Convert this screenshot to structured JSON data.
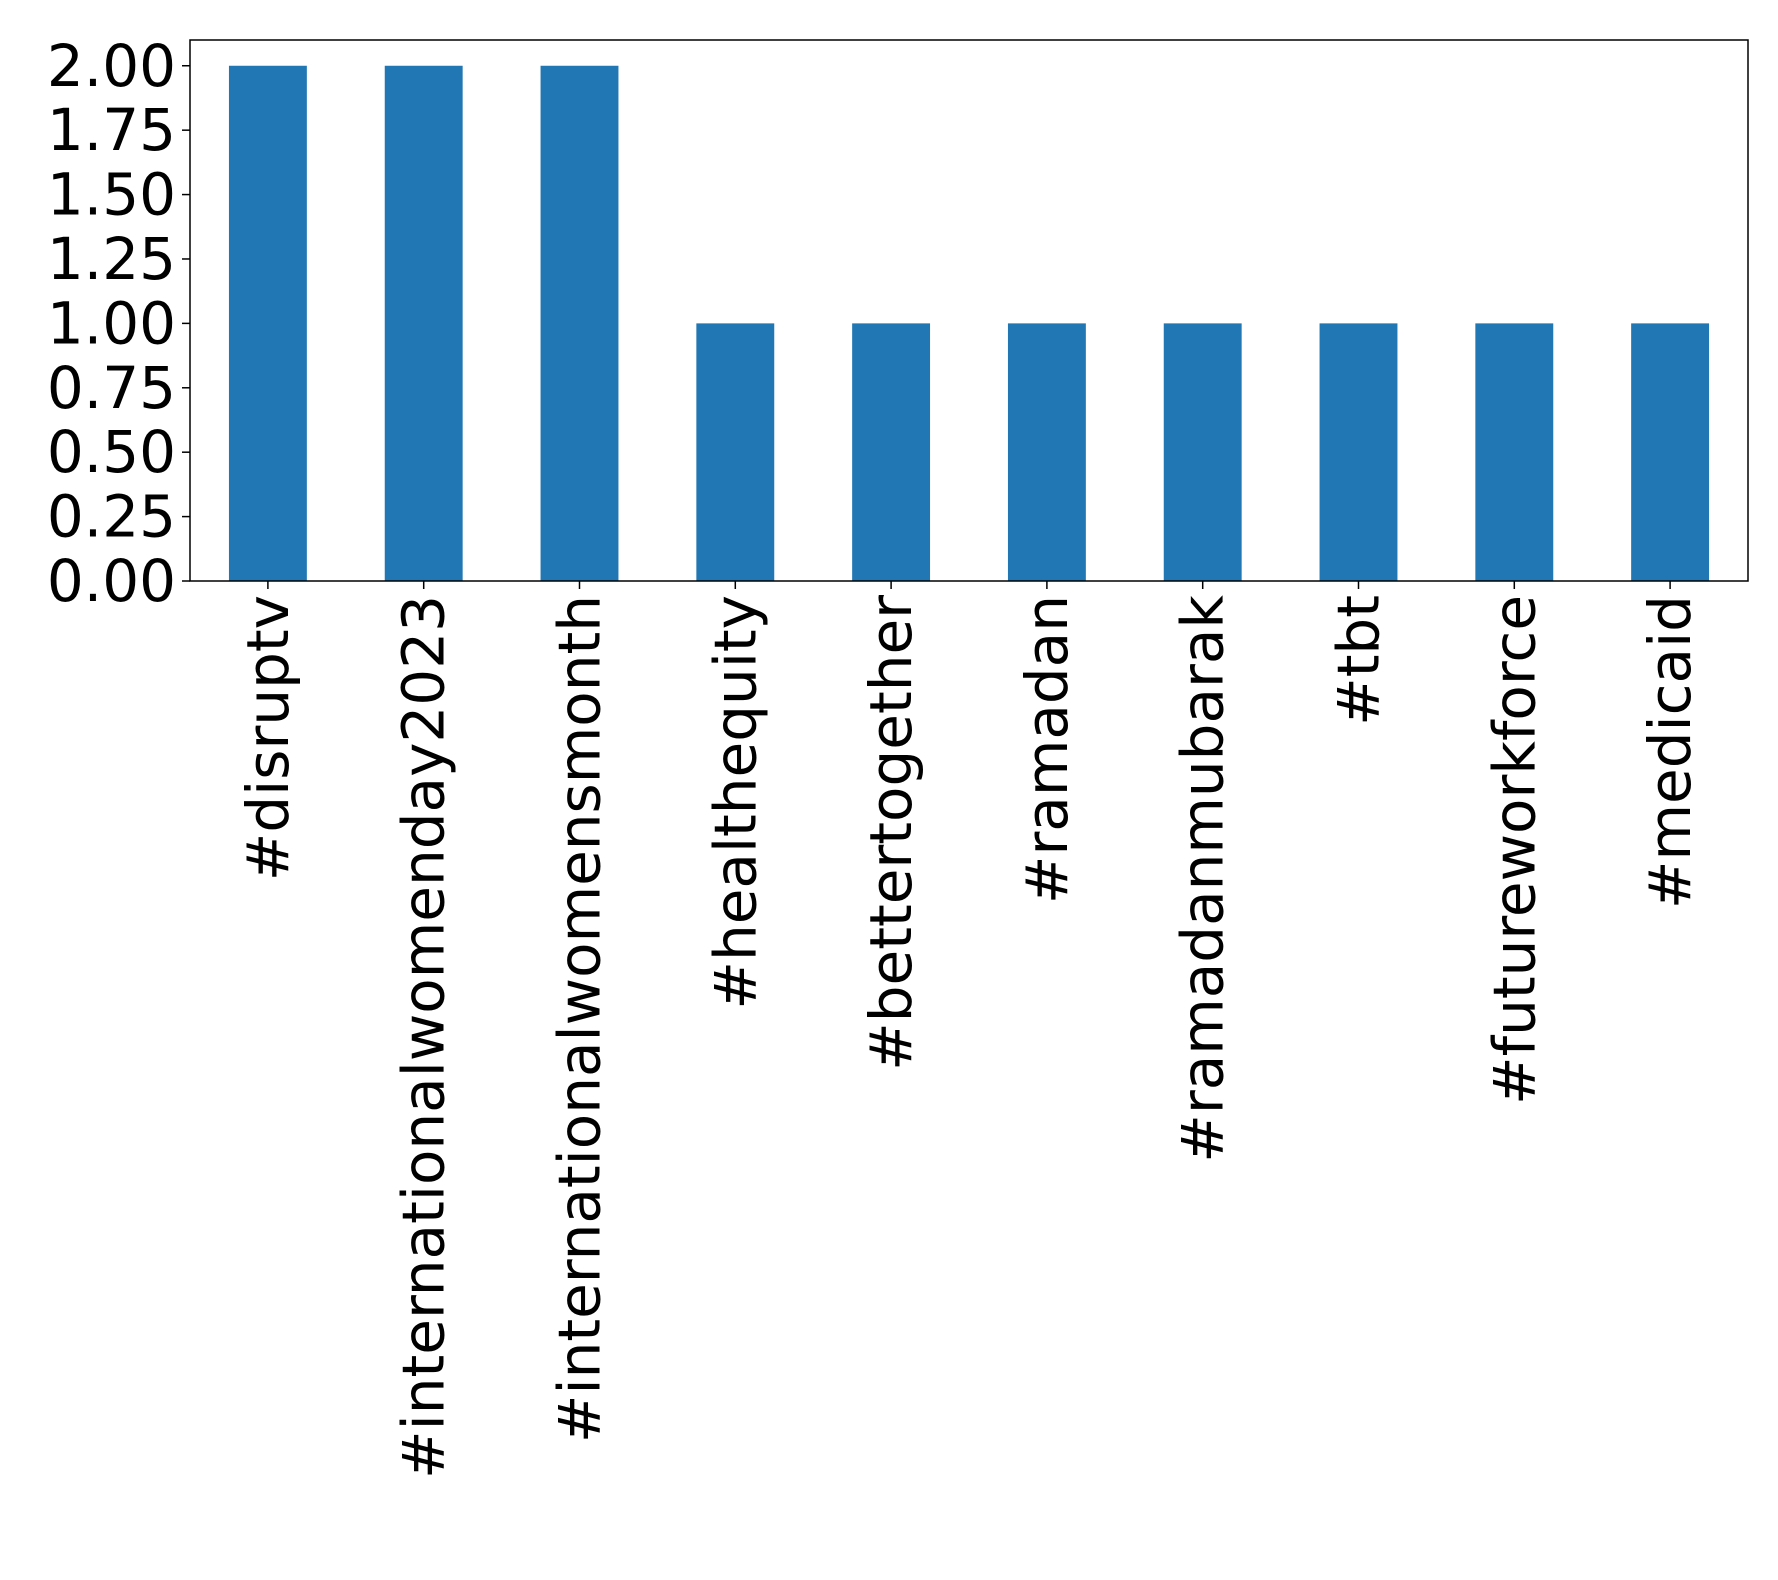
{
  "chart_data": {
    "type": "bar",
    "title": "",
    "xlabel": "",
    "ylabel": "",
    "categories": [
      "#disruptv",
      "#internationalwomenday2023",
      "#internationalwomensmonth",
      "#healthequity",
      "#bettertogether",
      "#ramadan",
      "#ramadanmubarak",
      "#tbt",
      "#futureworkforce",
      "#medicaid"
    ],
    "values": [
      2,
      2,
      2,
      1,
      1,
      1,
      1,
      1,
      1,
      1
    ],
    "ylim": [
      0,
      2.1
    ],
    "yticks": [
      "0.00",
      "0.25",
      "0.50",
      "0.75",
      "1.00",
      "1.25",
      "1.50",
      "1.75",
      "2.00"
    ],
    "grid": false,
    "legend": "none",
    "colors": {
      "bar": "#2077b4",
      "axis": "#000000",
      "background": "#ffffff"
    }
  }
}
